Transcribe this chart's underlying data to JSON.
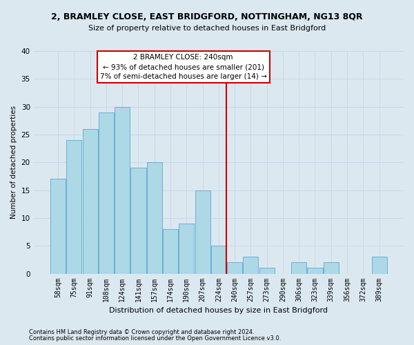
{
  "title1": "2, BRAMLEY CLOSE, EAST BRIDGFORD, NOTTINGHAM, NG13 8QR",
  "title2": "Size of property relative to detached houses in East Bridgford",
  "xlabel": "Distribution of detached houses by size in East Bridgford",
  "ylabel": "Number of detached properties",
  "footnote1": "Contains HM Land Registry data © Crown copyright and database right 2024.",
  "footnote2": "Contains public sector information licensed under the Open Government Licence v3.0.",
  "categories": [
    "58sqm",
    "75sqm",
    "91sqm",
    "108sqm",
    "124sqm",
    "141sqm",
    "157sqm",
    "174sqm",
    "190sqm",
    "207sqm",
    "224sqm",
    "240sqm",
    "257sqm",
    "273sqm",
    "290sqm",
    "306sqm",
    "323sqm",
    "339sqm",
    "356sqm",
    "372sqm",
    "389sqm"
  ],
  "values": [
    17,
    24,
    26,
    29,
    30,
    19,
    20,
    8,
    9,
    15,
    5,
    2,
    3,
    1,
    0,
    2,
    1,
    2,
    0,
    0,
    3
  ],
  "bar_color": "#add8e6",
  "bar_edge_color": "#6baed6",
  "grid_color": "#c8d8e8",
  "vline_color": "#cc0000",
  "annotation_text": "2 BRAMLEY CLOSE: 240sqm\n← 93% of detached houses are smaller (201)\n7% of semi-detached houses are larger (14) →",
  "annotation_box_color": "#ffffff",
  "annotation_box_edge": "#cc0000",
  "bg_color": "#dce8f0",
  "ylim": [
    0,
    40
  ],
  "yticks": [
    0,
    5,
    10,
    15,
    20,
    25,
    30,
    35,
    40
  ],
  "title1_fontsize": 9,
  "title2_fontsize": 8,
  "xlabel_fontsize": 8,
  "ylabel_fontsize": 7.5,
  "tick_fontsize": 7,
  "annot_fontsize": 7.5,
  "footnote_fontsize": 6
}
